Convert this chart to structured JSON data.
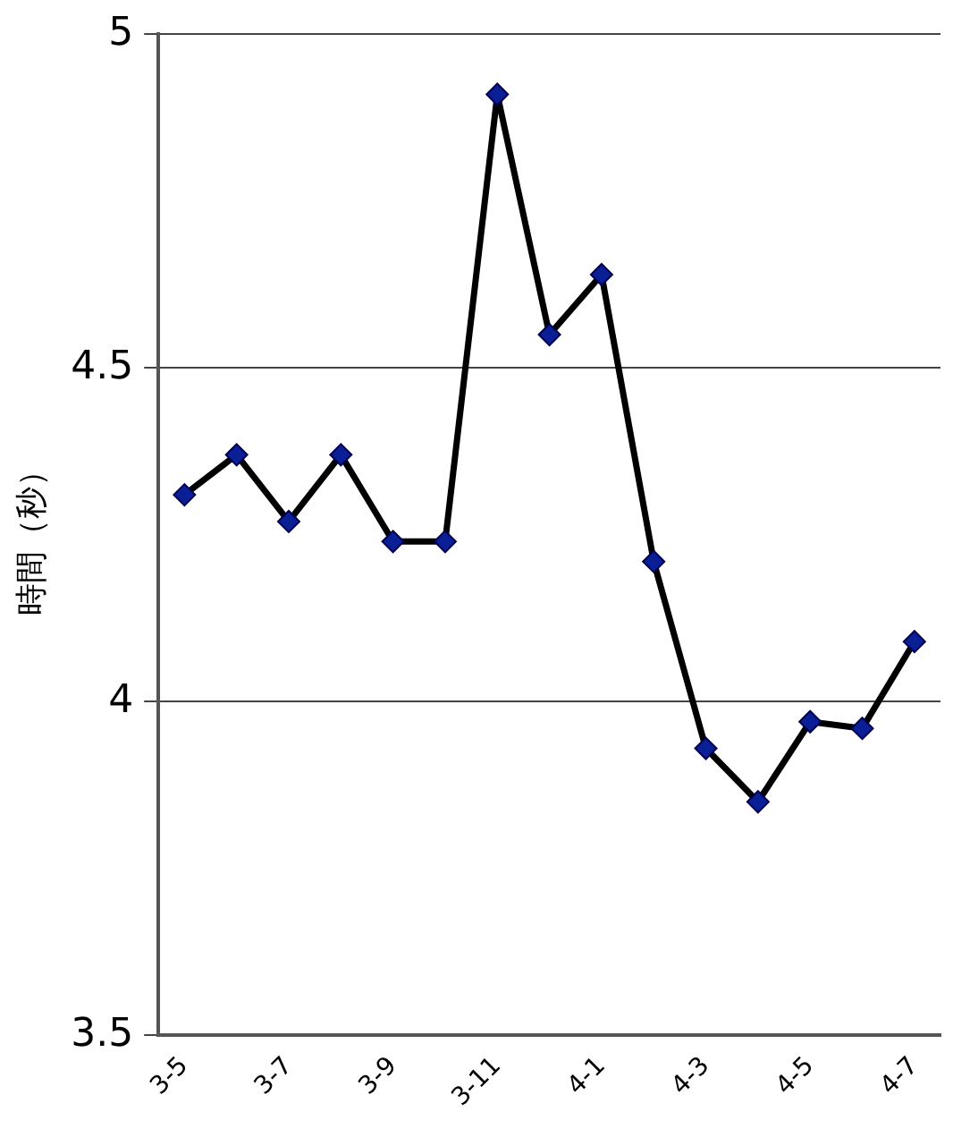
{
  "chart_data": {
    "type": "line",
    "ylabel": "時間（秒）",
    "categories": [
      "3-5",
      null,
      "3-7",
      null,
      "3-9",
      null,
      "3-11",
      null,
      "4-1",
      null,
      "4-3",
      null,
      "4-5",
      null,
      "4-7"
    ],
    "series": [
      {
        "color": "#000000",
        "values": [
          4.31,
          4.37,
          4.27,
          4.37,
          4.24,
          4.24,
          4.91,
          4.55,
          4.64,
          4.21,
          3.93,
          3.85,
          3.97,
          3.96,
          4.09
        ]
      }
    ],
    "ylim": [
      3.5,
      5
    ],
    "yticks": [
      3.5,
      4,
      4.5,
      5
    ],
    "grid": "y",
    "legend": false,
    "marker": "diamond",
    "line_style": "solid"
  }
}
